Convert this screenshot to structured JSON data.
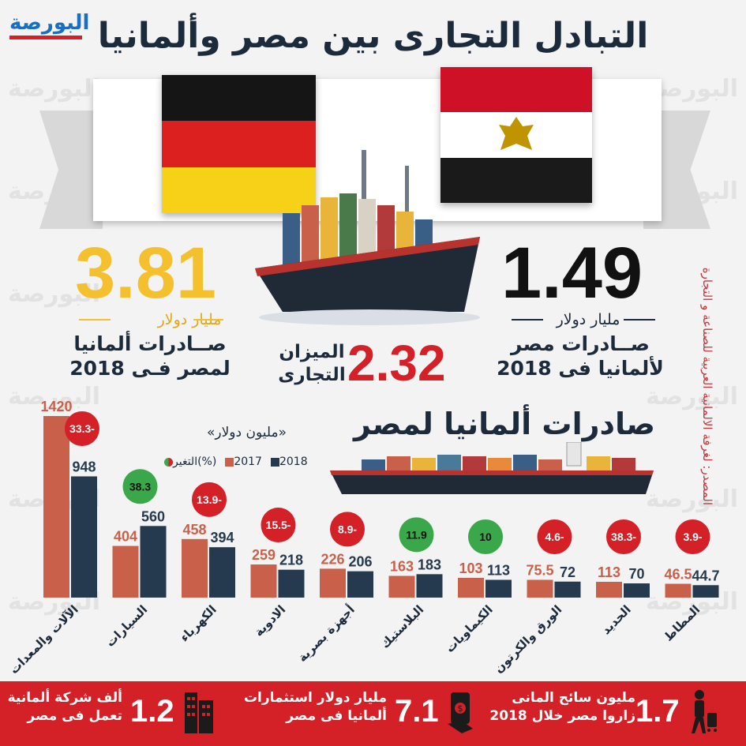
{
  "logo": {
    "text": "البورصة"
  },
  "watermark": "البورصة",
  "title": "التبادل التجارى بين مصر وألمانيا",
  "flags": {
    "left": "germany-flag",
    "right": "egypt-flag"
  },
  "germany_exports": {
    "value": "3.81",
    "unit": "مليار دولار",
    "desc_line1": "صــادرات ألمانيا",
    "desc_line2": "لمصر فـى 2018",
    "color": "#f5c02d"
  },
  "egypt_exports": {
    "value": "1.49",
    "unit": "مليار دولار",
    "desc_line1": "صــادرات مصر",
    "desc_line2": "لألمانيا فى 2018",
    "color": "#111111"
  },
  "balance": {
    "value": "2.32",
    "label_line1": "الميزان",
    "label_line2": "التجارى",
    "color": "#d42027"
  },
  "source": "المصدر: لغرفة الالمانية العربية للصناعة و التجارة",
  "chart_data": {
    "type": "bar",
    "title": "صادرات ألمانيا لمصر",
    "subtitle": "«مليون دولار»",
    "legend": {
      "s2018": "2018",
      "s2017": "2017",
      "change": "التغير(%)"
    },
    "colors": {
      "s2017": "#c9604a",
      "s2018": "#253a4e",
      "up": "#3aa84a",
      "down": "#d42027"
    },
    "categories": [
      "الآلات والمعدات",
      "السيارات",
      "الكهرباء",
      "الادوية",
      "أجهزة بصرية",
      "البلاستيك",
      "الكيماويات",
      "الورق والكرتون",
      "الحديد",
      "المطاط"
    ],
    "series": [
      {
        "name": "2017",
        "values": [
          1420,
          404,
          458,
          259,
          226,
          163,
          103,
          75.5,
          113,
          46.5
        ]
      },
      {
        "name": "2018",
        "values": [
          948,
          560,
          394,
          218,
          206,
          183,
          113,
          72,
          70,
          44.7
        ]
      }
    ],
    "change_labels": [
      "33.3-",
      "38.3",
      "13.9-",
      "15.5-",
      "8.9-",
      "11.9",
      "10",
      "4.6-",
      "38.3-",
      "3.9-"
    ],
    "change_direction": [
      "down",
      "up",
      "down",
      "down",
      "down",
      "up",
      "up",
      "down",
      "down",
      "down"
    ],
    "ylim": [
      0,
      1420
    ]
  },
  "footer": {
    "companies": {
      "value": "1.2",
      "line1": "ألف شركة ألمانية",
      "line2": "تعمل فى مصر"
    },
    "investments": {
      "value": "7.1",
      "line1": "مليار دولار استثمارات",
      "line2": "ألمانيا فى مصر"
    },
    "tourists": {
      "value": "1.7",
      "line1": "مليون سائح المانى",
      "line2": "زاروا مصر خلال 2018"
    }
  }
}
